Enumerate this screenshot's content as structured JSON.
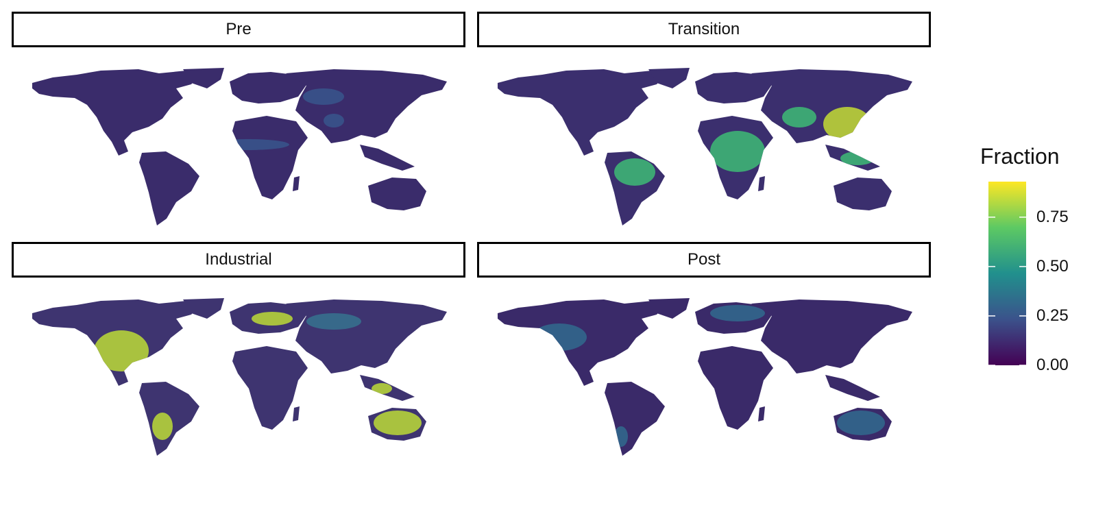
{
  "facets": [
    {
      "label": "Pre",
      "dominant": "#3a2c6b",
      "secondary": "#38568c",
      "accent": "#2a9e86"
    },
    {
      "label": "Transition",
      "dominant": "#3b2f6e",
      "secondary": "#3ebb76",
      "accent": "#c4dc34"
    },
    {
      "label": "Industrial",
      "dominant": "#3e3470",
      "secondary": "#36738e",
      "accent": "#bcdc36"
    },
    {
      "label": "Post",
      "dominant": "#3a2a69",
      "secondary": "#316a8e",
      "accent": "#34a48a"
    }
  ],
  "legend": {
    "title": "Fraction",
    "ticks": [
      {
        "label": "0.00",
        "value": 0.0
      },
      {
        "label": "0.25",
        "value": 0.25
      },
      {
        "label": "0.50",
        "value": 0.5
      },
      {
        "label": "0.75",
        "value": 0.75
      }
    ],
    "range": [
      0.0,
      0.93
    ],
    "colors": [
      "#440154",
      "#3b528b",
      "#21908d",
      "#5dc963",
      "#fde725"
    ]
  }
}
